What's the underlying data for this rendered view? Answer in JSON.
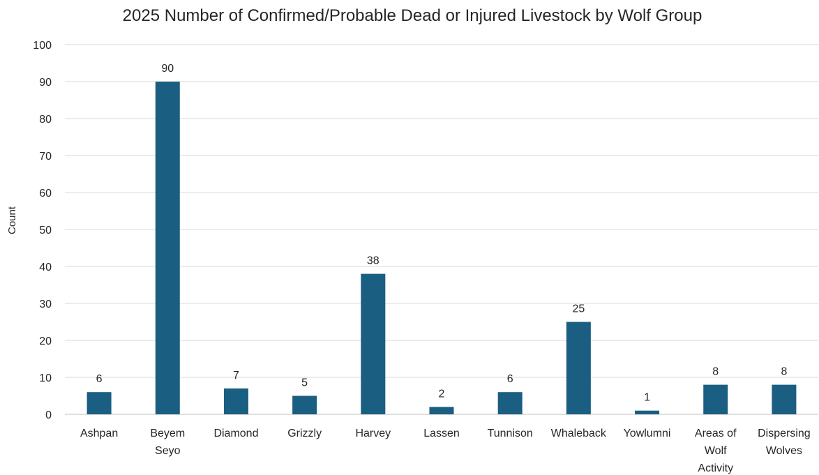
{
  "chart_data": {
    "type": "bar",
    "title": "2025 Number of Confirmed/Probable Dead or Injured Livestock by Wolf Group",
    "xlabel": "",
    "ylabel": "Count",
    "ylim": [
      0,
      100
    ],
    "yticks": [
      0,
      10,
      20,
      30,
      40,
      50,
      60,
      70,
      80,
      90,
      100
    ],
    "grid": true,
    "legend": "none",
    "bar_color": "#1a5e82",
    "categories": [
      [
        "Ashpan"
      ],
      [
        "Beyem",
        "Seyo"
      ],
      [
        "Diamond"
      ],
      [
        "Grizzly"
      ],
      [
        "Harvey"
      ],
      [
        "Lassen"
      ],
      [
        "Tunnison"
      ],
      [
        "Whaleback"
      ],
      [
        "Yowlumni"
      ],
      [
        "Areas of",
        "Wolf",
        "Activity"
      ],
      [
        "Dispersing",
        "Wolves"
      ]
    ],
    "values": [
      6,
      90,
      7,
      5,
      38,
      2,
      6,
      25,
      1,
      8,
      8
    ]
  }
}
